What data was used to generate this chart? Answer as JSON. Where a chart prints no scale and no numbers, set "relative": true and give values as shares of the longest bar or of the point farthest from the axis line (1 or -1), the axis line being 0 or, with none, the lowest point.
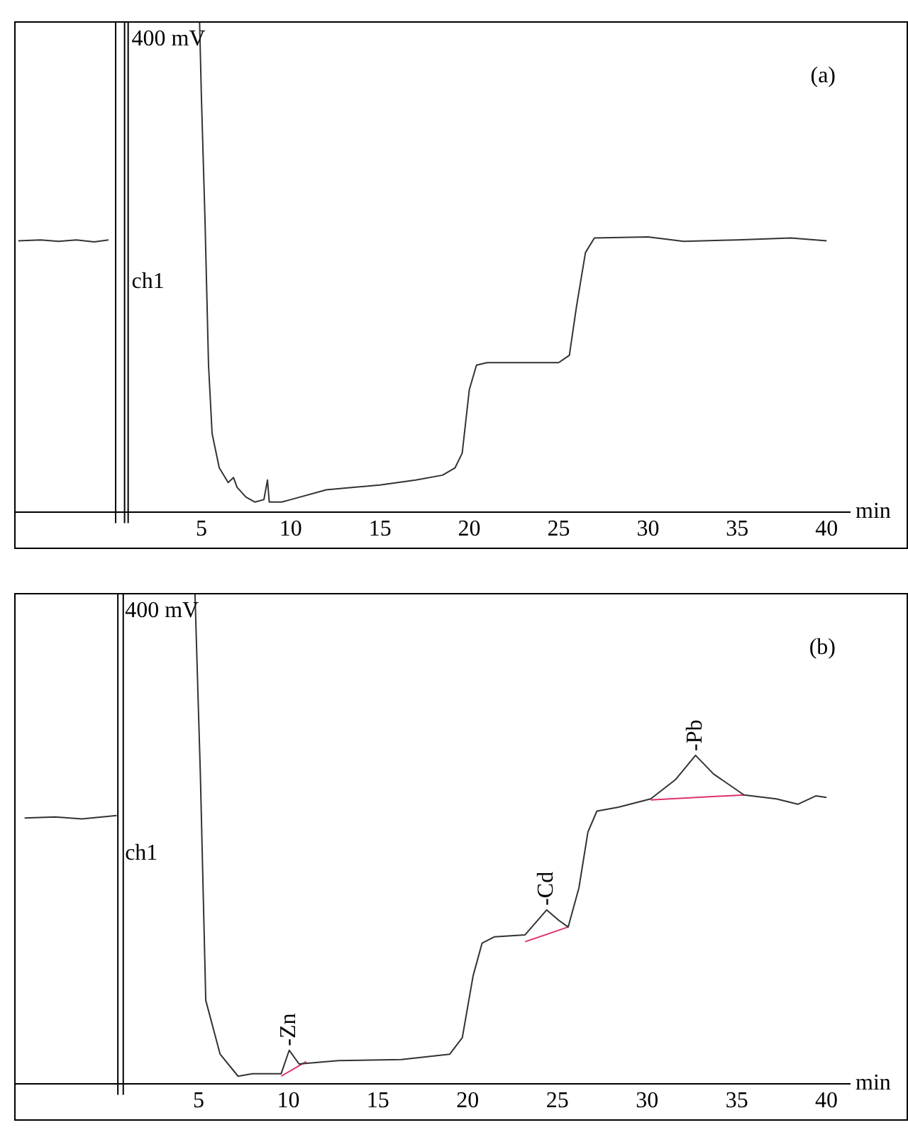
{
  "chart_data": [
    {
      "type": "line",
      "title": "(a)",
      "xlabel": "min",
      "relative": true,
      "xlim": [
        -5.4,
        41.3
      ],
      "xticks": [
        5,
        10,
        15,
        20,
        25,
        30,
        35,
        40
      ],
      "grid": false,
      "legend": false,
      "marker": "none",
      "tick_labels": "x",
      "ref_lines": [
        {
          "axis": "x",
          "value": 0.2,
          "label": null,
          "color": "#000000"
        },
        {
          "axis": "x",
          "value": 0.7,
          "label": "ch1",
          "color": "#000000"
        },
        {
          "axis": "x",
          "value": 0.9,
          "label": null,
          "color": "#000000"
        }
      ],
      "annotations": [
        {
          "text": "400 mV",
          "x": 0.7,
          "y": 1
        }
      ],
      "series": [
        {
          "color": "#333333",
          "x": [
            -5.25,
            -4,
            -3,
            -2,
            -1,
            -0.2
          ],
          "values": [
            0.554,
            0.556,
            0.553,
            0.556,
            0.552,
            0.556
          ]
        },
        {
          "color": "#333333",
          "x": [
            4.9,
            5.0,
            5.2,
            5.4,
            5.6,
            6,
            6.5,
            6.8,
            7,
            7.5,
            8,
            8.5,
            8.7,
            8.8,
            9.5,
            10,
            12,
            15,
            17,
            18.5,
            19.2,
            19.6,
            20,
            20.4,
            21,
            23,
            25,
            25.6,
            26,
            26.5,
            27,
            30,
            32,
            35,
            38,
            40
          ],
          "values": [
            1,
            0.85,
            0.6,
            0.3,
            0.16,
            0.09,
            0.06,
            0.07,
            0.05,
            0.03,
            0.02,
            0.025,
            0.065,
            0.02,
            0.02,
            0.025,
            0.045,
            0.055,
            0.065,
            0.075,
            0.09,
            0.12,
            0.25,
            0.3,
            0.305,
            0.305,
            0.305,
            0.32,
            0.42,
            0.53,
            0.56,
            0.562,
            0.553,
            0.556,
            0.56,
            0.554
          ]
        }
      ]
    },
    {
      "type": "line",
      "title": "(b)",
      "xlabel": "min",
      "relative": true,
      "xlim": [
        -5.2,
        41.3
      ],
      "xticks": [
        5,
        10,
        15,
        20,
        25,
        30,
        35,
        40
      ],
      "grid": false,
      "legend": false,
      "marker": "none",
      "tick_labels": "x",
      "ref_lines": [
        {
          "axis": "x",
          "value": 0.5,
          "label": "ch1",
          "color": "#000000"
        },
        {
          "axis": "x",
          "value": 0.8,
          "label": null,
          "color": "#000000"
        }
      ],
      "annotations": [
        {
          "text": "400 mV",
          "x": 0.5,
          "y": 1
        },
        {
          "text": "-Zn",
          "x": 10.05,
          "y": 0.068
        },
        {
          "text": "-Cd",
          "x": 24.4,
          "y": 0.355
        },
        {
          "text": "-Pb",
          "x": 32.7,
          "y": 0.671
        }
      ],
      "series": [
        {
          "color": "#333333",
          "x": [
            -4.7,
            -3,
            -1.5,
            0.43
          ],
          "values": [
            0.543,
            0.545,
            0.541,
            0.548
          ]
        },
        {
          "color": "#333333",
          "x": [
            4.8,
            5.1,
            5.4,
            6.2,
            7.2,
            8,
            9.6,
            10.05,
            10.6,
            12.8,
            16.3,
            19,
            19.7,
            20.3,
            20.8,
            21.5,
            23.2,
            24.4,
            25.1,
            25.6,
            26.2,
            26.7,
            27.2,
            28.4,
            30.2,
            31.6,
            32.7,
            33.7,
            35.4,
            37.2,
            38.4,
            39.4,
            40
          ],
          "values": [
            1,
            0.63,
            0.17,
            0.06,
            0.015,
            0.02,
            0.02,
            0.068,
            0.04,
            0.047,
            0.049,
            0.06,
            0.094,
            0.22,
            0.287,
            0.3,
            0.304,
            0.355,
            0.333,
            0.32,
            0.4,
            0.514,
            0.557,
            0.565,
            0.582,
            0.622,
            0.671,
            0.633,
            0.59,
            0.582,
            0.571,
            0.588,
            0.585
          ]
        },
        {
          "color": "#e0306a",
          "x": [
            9.6,
            11
          ],
          "values": [
            0.015,
            0.045
          ]
        },
        {
          "color": "#e0306a",
          "x": [
            23.2,
            25.6
          ],
          "values": [
            0.29,
            0.32
          ]
        },
        {
          "color": "#e0306a",
          "x": [
            30.2,
            35.4
          ],
          "values": [
            0.58,
            0.59
          ]
        }
      ]
    }
  ]
}
